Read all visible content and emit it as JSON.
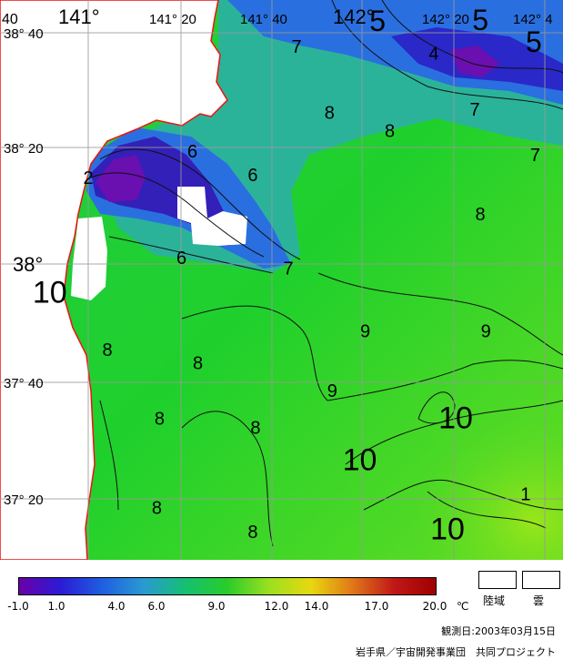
{
  "map": {
    "lon_labels": [
      "141°",
      "141° 20",
      "141° 40",
      "142°",
      "142° 20",
      "142° 4"
    ],
    "lat_labels": [
      "38° 40",
      "38° 20",
      "38°",
      "37° 40",
      "37° 20"
    ],
    "corner_label": "40",
    "contour_labels": [
      {
        "text": "5",
        "lon": 142.055,
        "lat": 38.672
      },
      {
        "text": "5",
        "lon": 142.43,
        "lat": 38.675
      },
      {
        "text": "5",
        "lon": 142.625,
        "lat": 38.612
      },
      {
        "text": "4",
        "lon": 142.26,
        "lat": 38.59
      },
      {
        "text": "7",
        "lon": 141.76,
        "lat": 38.61
      },
      {
        "text": "7",
        "lon": 142.41,
        "lat": 38.43
      },
      {
        "text": "7",
        "lon": 142.63,
        "lat": 38.3
      },
      {
        "text": "8",
        "lon": 141.88,
        "lat": 38.42
      },
      {
        "text": "8",
        "lon": 142.1,
        "lat": 38.368
      },
      {
        "text": "8",
        "lon": 142.43,
        "lat": 38.13
      },
      {
        "text": "6",
        "lon": 141.38,
        "lat": 38.31
      },
      {
        "text": "6",
        "lon": 141.6,
        "lat": 38.242
      },
      {
        "text": "6",
        "lon": 141.34,
        "lat": 38.005
      },
      {
        "text": "2",
        "lon": 141.0,
        "lat": 38.235
      },
      {
        "text": "7",
        "lon": 141.73,
        "lat": 37.975
      },
      {
        "text": "10",
        "lon": 140.86,
        "lat": 37.895
      },
      {
        "text": "8",
        "lon": 141.07,
        "lat": 37.742
      },
      {
        "text": "8",
        "lon": 141.4,
        "lat": 37.705
      },
      {
        "text": "8",
        "lon": 141.26,
        "lat": 37.545
      },
      {
        "text": "8",
        "lon": 141.61,
        "lat": 37.52
      },
      {
        "text": "8",
        "lon": 141.25,
        "lat": 37.29
      },
      {
        "text": "8",
        "lon": 141.6,
        "lat": 37.222
      },
      {
        "text": "9",
        "lon": 142.01,
        "lat": 37.795
      },
      {
        "text": "9",
        "lon": 142.45,
        "lat": 37.795
      },
      {
        "text": "9",
        "lon": 141.89,
        "lat": 37.625
      },
      {
        "text": "10",
        "lon": 142.34,
        "lat": 37.535
      },
      {
        "text": "10",
        "lon": 141.99,
        "lat": 37.415
      },
      {
        "text": "10",
        "lon": 142.31,
        "lat": 37.218
      },
      {
        "text": "1",
        "lon": 142.595,
        "lat": 37.33
      }
    ]
  },
  "colorbar": {
    "ticks": [
      "-1.0",
      "1.0",
      "4.0",
      "6.0",
      "9.0",
      "12.0",
      "14.0",
      "17.0",
      "20.0"
    ],
    "unit": "℃",
    "colors": [
      "#6a00a8",
      "#2b1bd6",
      "#1f5fe0",
      "#2a9ad2",
      "#14c070",
      "#2acc2a",
      "#9ae020",
      "#e8d810",
      "#e07818",
      "#c01818",
      "#a00000"
    ]
  },
  "legend": {
    "land_label": "陸域",
    "cloud_label": "雲"
  },
  "observation_date": "観測日:2003年03月15日",
  "credit": "岩手県／宇宙開発事業団　共同プロジェクト"
}
